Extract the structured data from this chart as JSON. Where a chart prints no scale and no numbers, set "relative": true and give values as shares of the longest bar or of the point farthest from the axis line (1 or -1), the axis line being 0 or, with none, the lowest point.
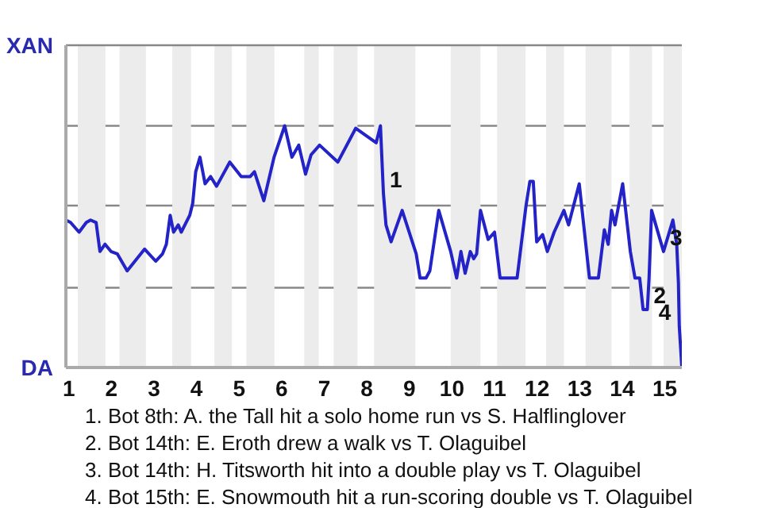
{
  "chart_data": {
    "type": "line",
    "relative": true,
    "x": [
      0.93,
      1.04,
      1.24,
      1.41,
      1.51,
      1.64,
      1.73,
      1.85,
      1.99,
      2.14,
      2.37,
      2.78,
      3.04,
      3.2,
      3.29,
      3.38,
      3.46,
      3.57,
      3.64,
      3.84,
      3.91,
      3.98,
      4.08,
      4.2,
      4.33,
      4.47,
      4.78,
      5.05,
      5.26,
      5.36,
      5.58,
      5.82,
      6.07,
      6.24,
      6.4,
      6.56,
      6.69,
      6.89,
      7.32,
      7.74,
      8.22,
      8.32,
      8.39,
      8.45,
      8.57,
      8.83,
      9.16,
      9.25,
      9.39,
      9.48,
      9.69,
      9.97,
      10.11,
      10.21,
      10.31,
      10.43,
      10.51,
      10.58,
      10.67,
      10.85,
      11.0,
      11.13,
      11.53,
      11.74,
      11.83,
      11.91,
      11.99,
      12.13,
      12.24,
      12.4,
      12.63,
      12.74,
      12.99,
      13.23,
      13.44,
      13.58,
      13.67,
      13.75,
      13.83,
      14.01,
      14.19,
      14.3,
      14.41,
      14.49,
      14.59,
      14.63,
      14.69,
      14.97,
      15.19,
      15.28,
      15.32,
      15.34,
      15.4
    ],
    "series": [
      {
        "color": "#2323c8",
        "values": [
          0.61,
          0.6,
          0.56,
          0.6,
          0.61,
          0.6,
          0.48,
          0.51,
          0.48,
          0.47,
          0.4,
          0.49,
          0.44,
          0.47,
          0.51,
          0.63,
          0.56,
          0.59,
          0.56,
          0.63,
          0.68,
          0.81,
          0.87,
          0.76,
          0.79,
          0.75,
          0.85,
          0.79,
          0.79,
          0.81,
          0.69,
          0.87,
          1,
          0.87,
          0.92,
          0.8,
          0.88,
          0.92,
          0.85,
          0.99,
          0.93,
          1,
          0.72,
          0.59,
          0.52,
          0.65,
          0.47,
          0.37,
          0.37,
          0.4,
          0.65,
          0.48,
          0.37,
          0.48,
          0.39,
          0.48,
          0.45,
          0.47,
          0.65,
          0.53,
          0.56,
          0.37,
          0.37,
          0.67,
          0.77,
          0.77,
          0.52,
          0.55,
          0.48,
          0.56,
          0.65,
          0.59,
          0.76,
          0.37,
          0.37,
          0.57,
          0.51,
          0.65,
          0.59,
          0.76,
          0.48,
          0.37,
          0.37,
          0.24,
          0.24,
          0.37,
          0.65,
          0.48,
          0.61,
          0.51,
          0.35,
          0.17,
          0
        ]
      }
    ],
    "xlim": [
      0.93,
      15.4
    ],
    "xticks": [
      1,
      2,
      3,
      4,
      5,
      6,
      7,
      8,
      9,
      10,
      11,
      12,
      13,
      14,
      15
    ],
    "line_style": "solid",
    "ref_lines": [
      {
        "axis": "y",
        "value": 0.33,
        "color": "#888888"
      },
      {
        "axis": "y",
        "value": 0.67,
        "color": "#888888"
      },
      {
        "axis": "y",
        "value": 1,
        "color": "#888888"
      }
    ],
    "bands": [
      {
        "axis": "x",
        "from": 1.21,
        "to": 1.86,
        "color": "#ececec"
      },
      {
        "axis": "x",
        "from": 2.19,
        "to": 2.81,
        "color": "#ececec"
      },
      {
        "axis": "x",
        "from": 3.43,
        "to": 3.87,
        "color": "#ececec"
      },
      {
        "axis": "x",
        "from": 4.42,
        "to": 4.83,
        "color": "#ececec"
      },
      {
        "axis": "x",
        "from": 5.17,
        "to": 5.83,
        "color": "#ececec"
      },
      {
        "axis": "x",
        "from": 6.53,
        "to": 6.87,
        "color": "#ececec"
      },
      {
        "axis": "x",
        "from": 7.22,
        "to": 7.78,
        "color": "#ececec"
      },
      {
        "axis": "x",
        "from": 8.17,
        "to": 9.14,
        "color": "#ececec"
      },
      {
        "axis": "x",
        "from": 9.97,
        "to": 10.67,
        "color": "#ececec"
      },
      {
        "axis": "x",
        "from": 11.06,
        "to": 11.73,
        "color": "#ececec"
      },
      {
        "axis": "x",
        "from": 12.21,
        "to": 12.63,
        "color": "#ececec"
      },
      {
        "axis": "x",
        "from": 13.14,
        "to": 13.75,
        "color": "#ececec"
      },
      {
        "axis": "x",
        "from": 14.17,
        "to": 14.7,
        "color": "#ececec"
      },
      {
        "axis": "x",
        "from": 14.97,
        "to": 15.4,
        "color": "#ececec"
      }
    ],
    "annotations": [
      "XAN",
      "DA",
      {
        "text": "1",
        "x": 8.39,
        "y": 0.72
      },
      {
        "text": "2",
        "x": 14.59,
        "y": 0.24
      },
      {
        "text": "3",
        "x": 14.97,
        "y": 0.48
      },
      {
        "text": "4",
        "x": 15.34,
        "y": 0.17
      },
      "1. Bot 8th: A. the Tall hit a solo home run vs S. Halflinglover",
      "2. Bot 14th: E. Eroth drew a walk vs T. Olaguibel",
      "3. Bot 14th: H. Titsworth hit into a double play vs T. Olaguibel",
      "4. Bot 15th: E. Snowmouth hit a run-scoring double vs T. Olaguibel"
    ]
  }
}
